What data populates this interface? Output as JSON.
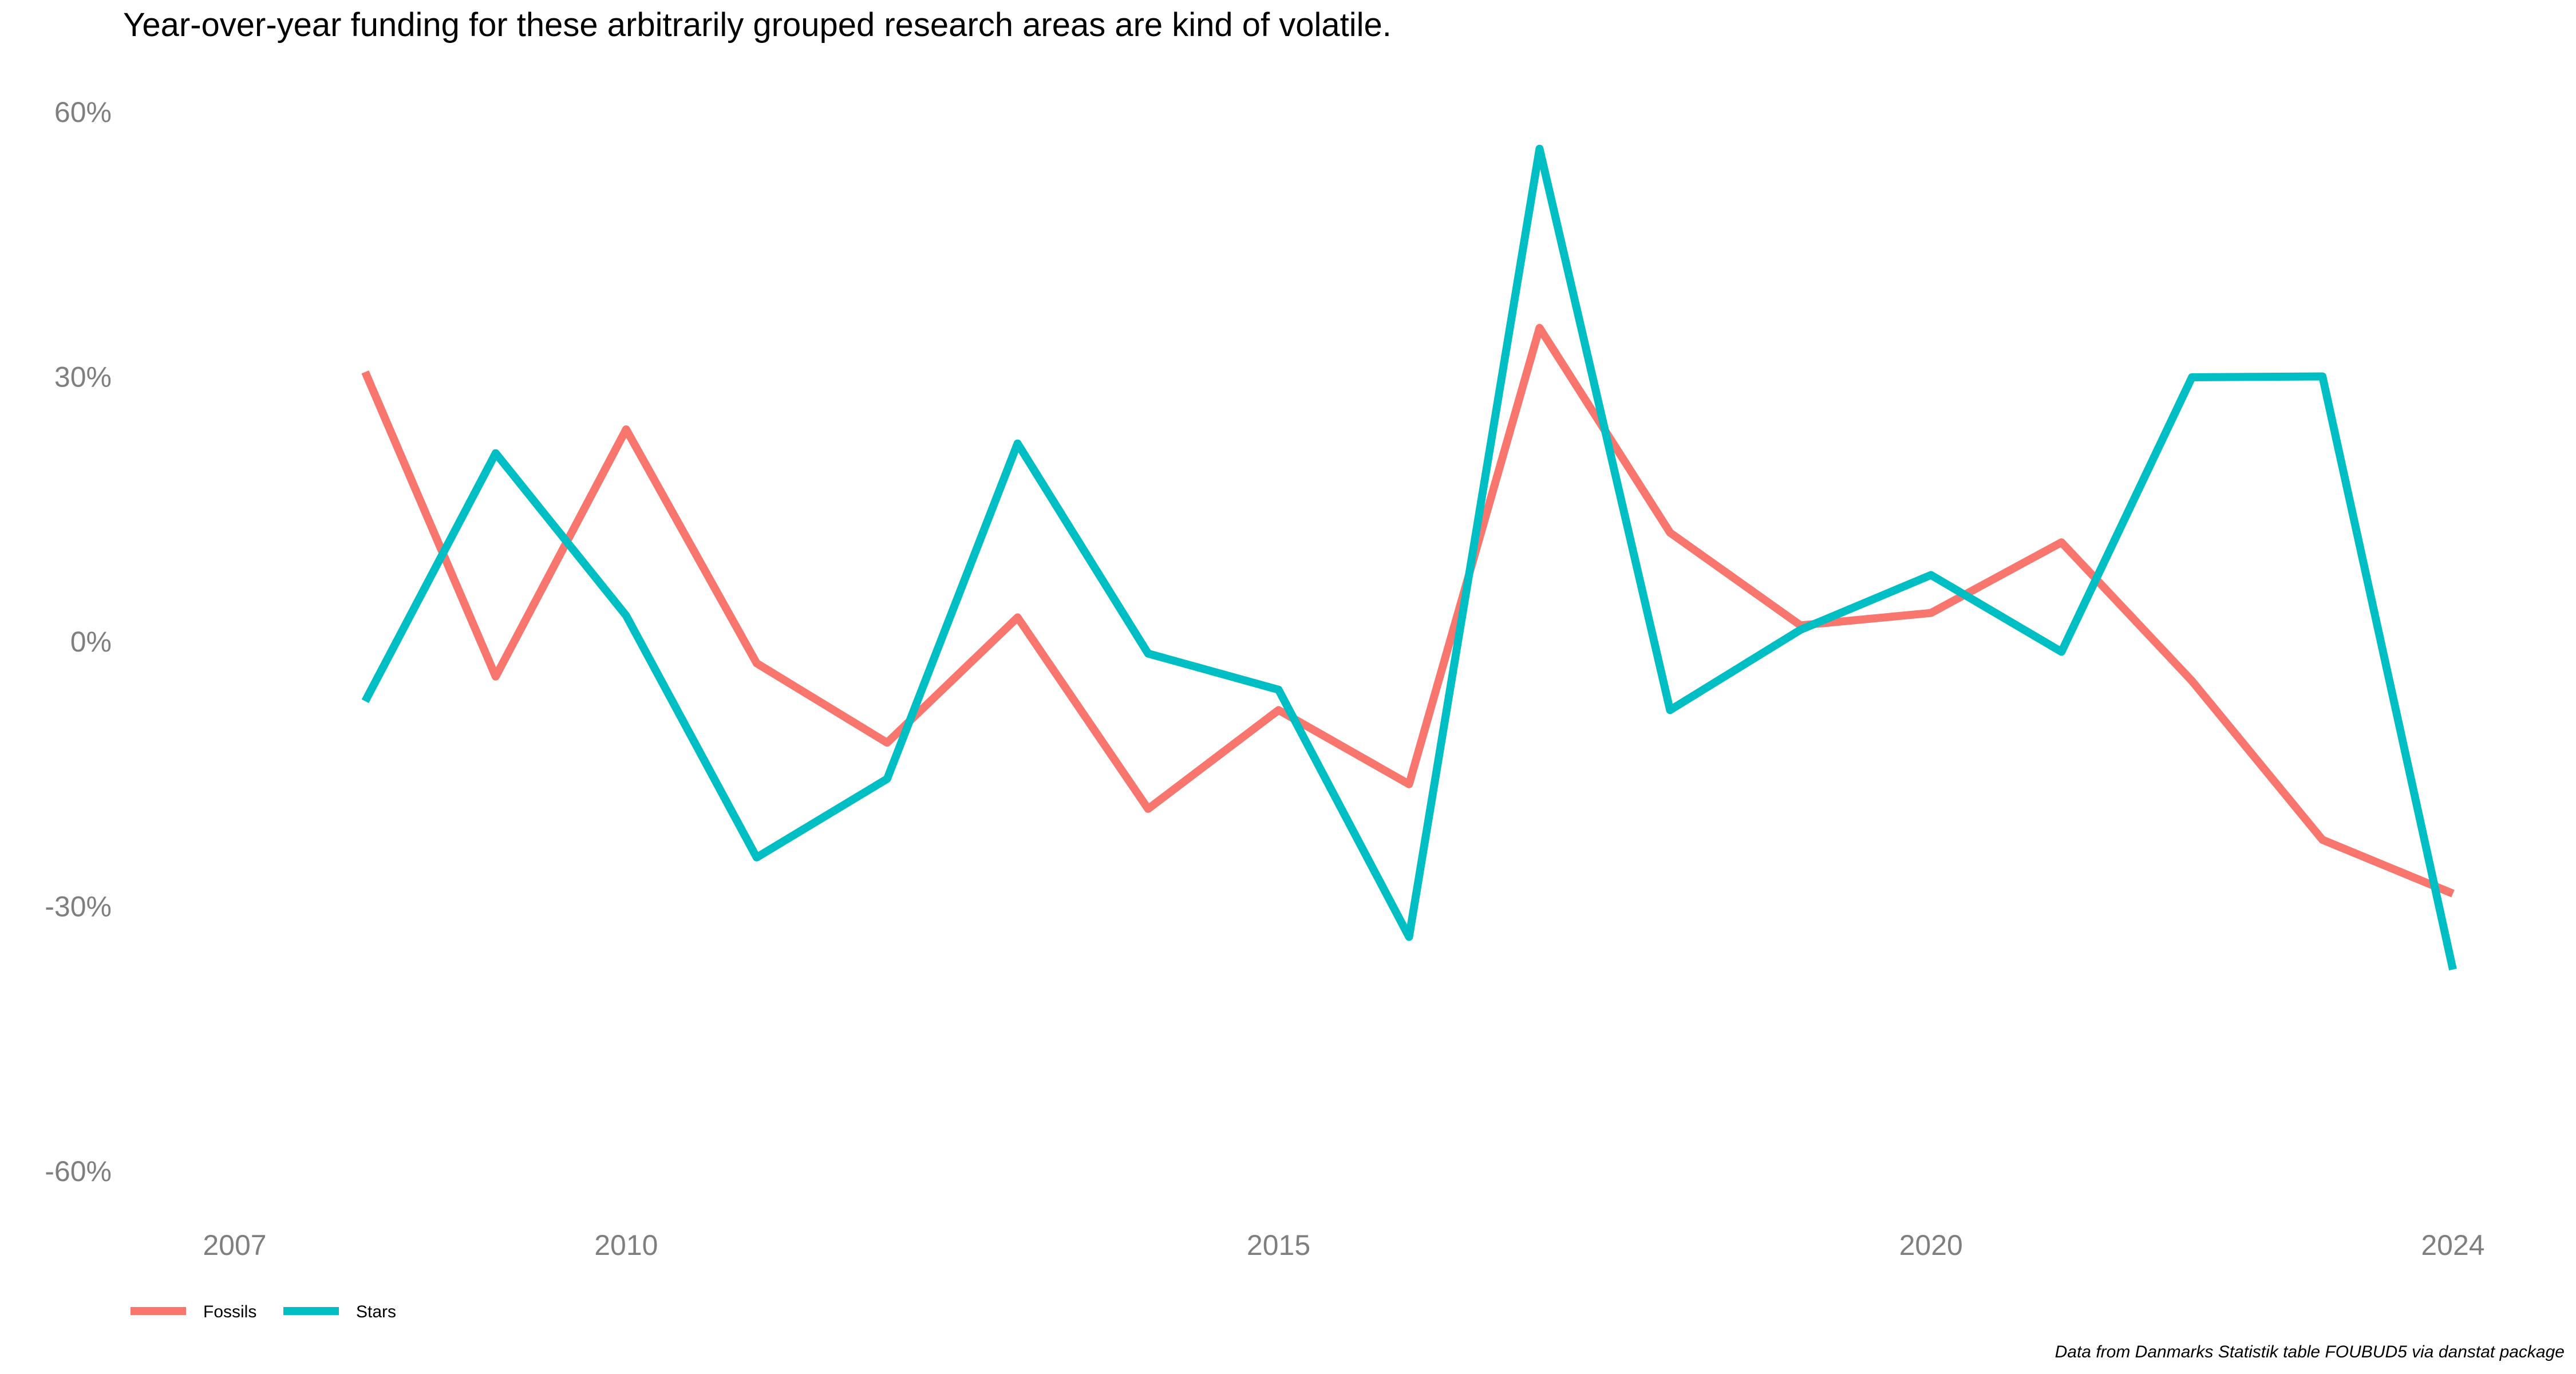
{
  "chart_data": {
    "type": "line",
    "title": "Year-over-year funding for these arbitrarily grouped research areas are kind of volatile.",
    "caption": "Data from Danmarks Statistik table FOUBUD5 via danstat package",
    "xlabel": "",
    "ylabel": "",
    "xlim": [
      2007,
      2024
    ],
    "ylim": [
      -60,
      60
    ],
    "x_ticks": [
      2007,
      2010,
      2015,
      2020,
      2024
    ],
    "y_ticks": [
      60,
      30,
      0,
      -30,
      -60
    ],
    "y_tick_labels": [
      "60%",
      "30%",
      "0%",
      "-30%",
      "-60%"
    ],
    "grid": false,
    "legend_position": "bottom-left",
    "series": [
      {
        "name": "Fossils",
        "color": "#F8766D",
        "x": [
          2008,
          2009,
          2010,
          2011,
          2012,
          2013,
          2014,
          2015,
          2016,
          2017,
          2018,
          2019,
          2020,
          2021,
          2022,
          2023,
          2024
        ],
        "values": [
          30.5,
          -4,
          24,
          -2.5,
          -11.5,
          2.7,
          -19,
          -7.8,
          -16.2,
          35.5,
          12.3,
          1.8,
          3.2,
          11.2,
          -4.5,
          -22.5,
          -28.6
        ]
      },
      {
        "name": "Stars",
        "color": "#00BFC4",
        "x": [
          2008,
          2009,
          2010,
          2011,
          2012,
          2013,
          2014,
          2015,
          2016,
          2017,
          2018,
          2019,
          2020,
          2021,
          2022,
          2023,
          2024
        ],
        "values": [
          -6.8,
          21.3,
          2.9,
          -24.5,
          -15.6,
          22.4,
          -1.4,
          -5.5,
          -33.5,
          55.8,
          -7.8,
          1.3,
          7.5,
          -1.2,
          29.9,
          30.0,
          -37.2
        ]
      }
    ]
  }
}
